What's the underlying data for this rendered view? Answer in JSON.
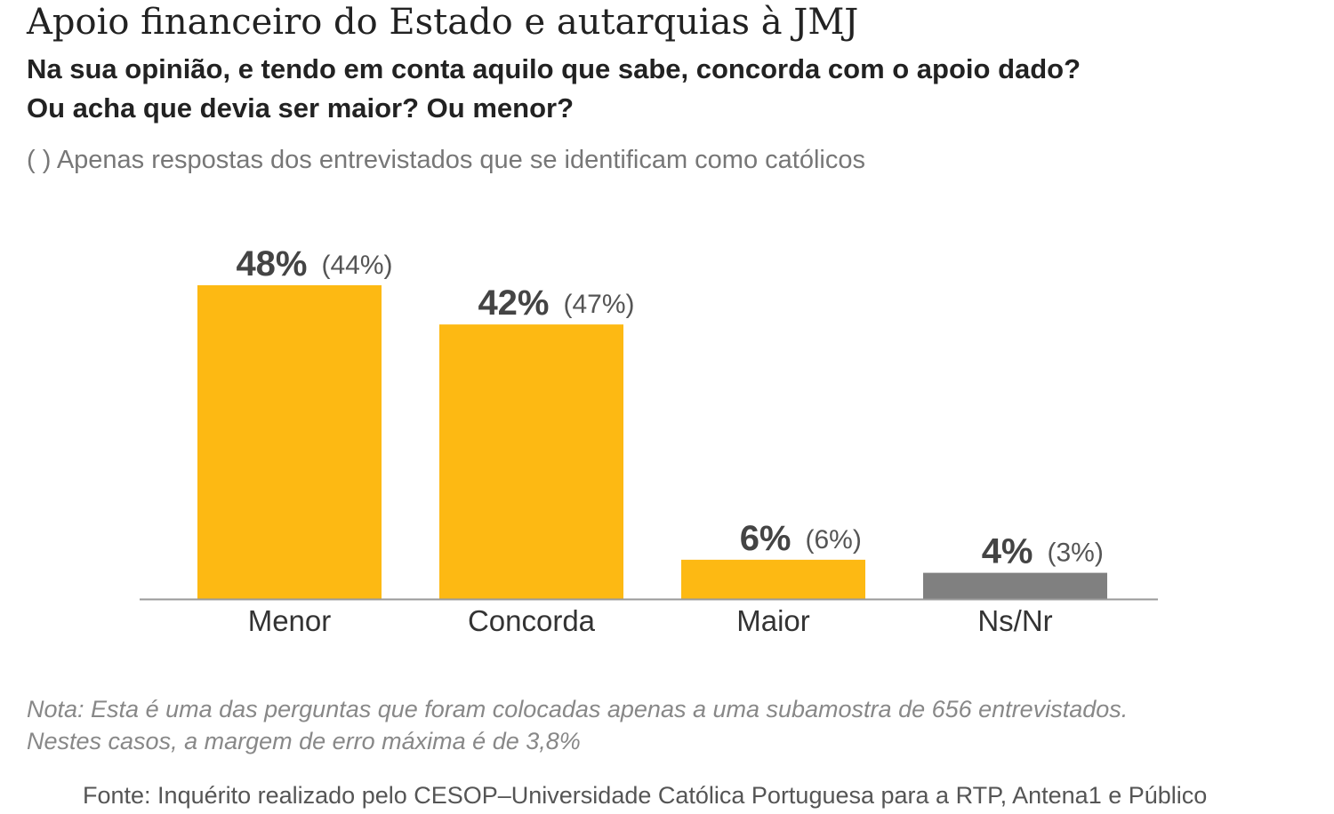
{
  "chart_data": {
    "type": "bar",
    "title": "Apoio financeiro do Estado e autarquias à JMJ",
    "subtitle": [
      "Na sua opinião, e tendo em conta aquilo que sabe, concorda com o apoio dado?",
      "Ou acha que devia ser maior? Ou menor?"
    ],
    "legend_note": "( ) Apenas respostas dos entrevistados que se identificam como católicos",
    "categories": [
      "Menor",
      "Concorda",
      "Maior",
      "Ns/Nr"
    ],
    "values": [
      48,
      42,
      6,
      4
    ],
    "value_labels": [
      "48%",
      "42%",
      "6%",
      "4%"
    ],
    "catholic_values": [
      44,
      47,
      6,
      3
    ],
    "catholic_labels": [
      "(44%)",
      "(47%)",
      "(6%)",
      "(3%)"
    ],
    "colors": [
      "#FDB913",
      "#FDB913",
      "#FDB913",
      "#808080"
    ],
    "ylim": [
      0,
      48
    ],
    "xlabel": "",
    "ylabel": ""
  },
  "footer": {
    "note_line1": "Nota: Esta é uma das perguntas que foram colocadas apenas a uma subamostra de 656 entrevistados.",
    "note_line2": "Nestes casos, a margem de erro máxima é de 3,8%",
    "source": "Fonte: Inquérito realizado pelo CESOP–Universidade Católica Portuguesa para a RTP, Antena1 e Público"
  }
}
